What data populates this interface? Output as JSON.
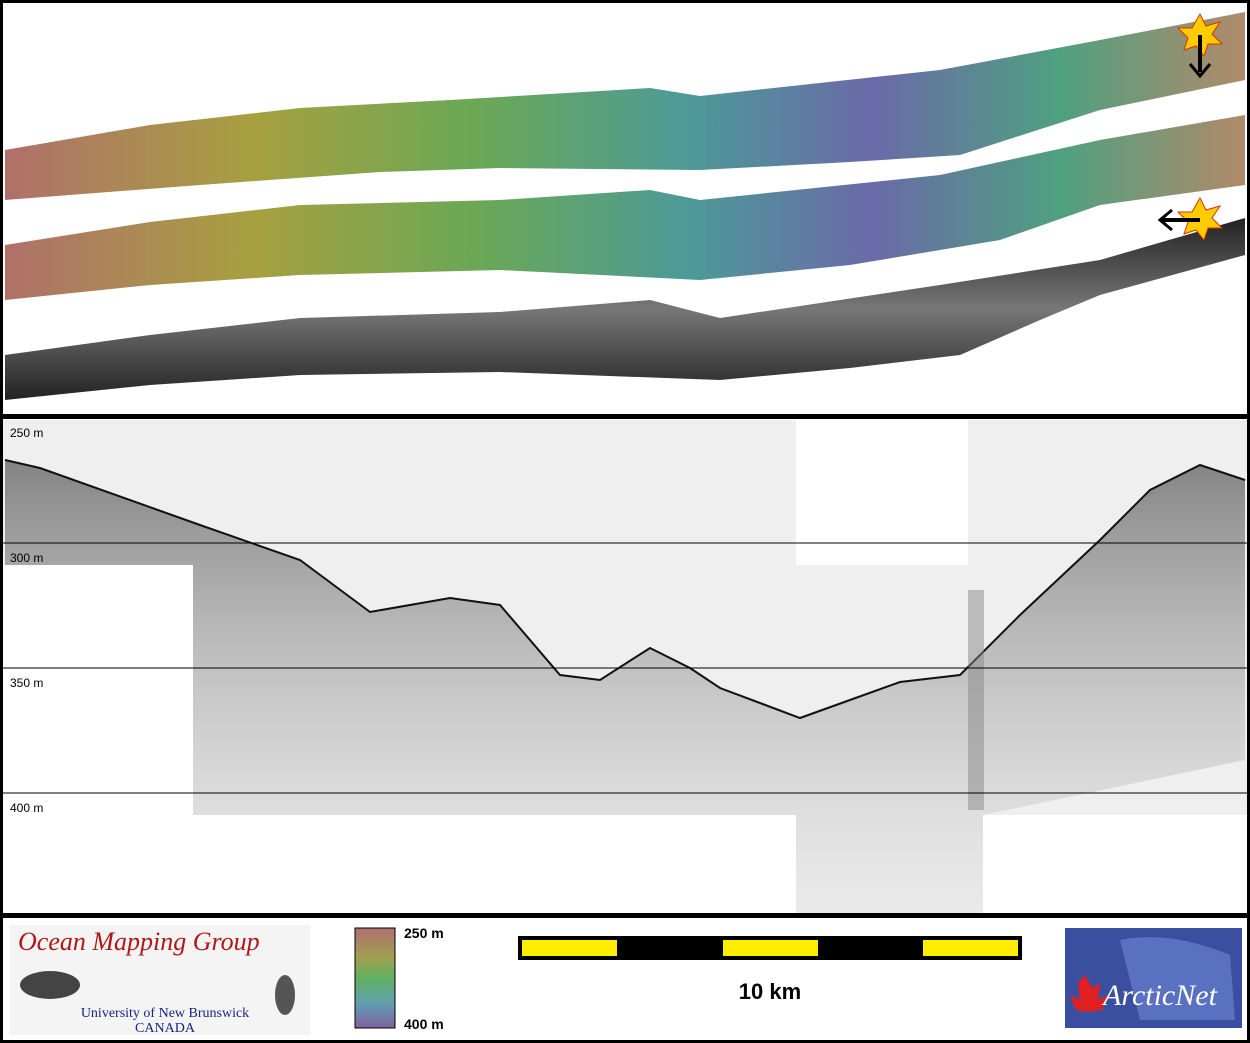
{
  "profile": {
    "depth_labels": [
      "250 m",
      "300 m",
      "350 m",
      "400 m"
    ]
  },
  "footer": {
    "logo": {
      "title": "Ocean Mapping Group",
      "university": "University of New Brunswick",
      "country": "CANADA"
    },
    "colorbar": {
      "top_label": "250 m",
      "bottom_label": "400 m"
    },
    "scale_bar": {
      "label": "10 km"
    },
    "partner_logo": "ArcticNet"
  }
}
